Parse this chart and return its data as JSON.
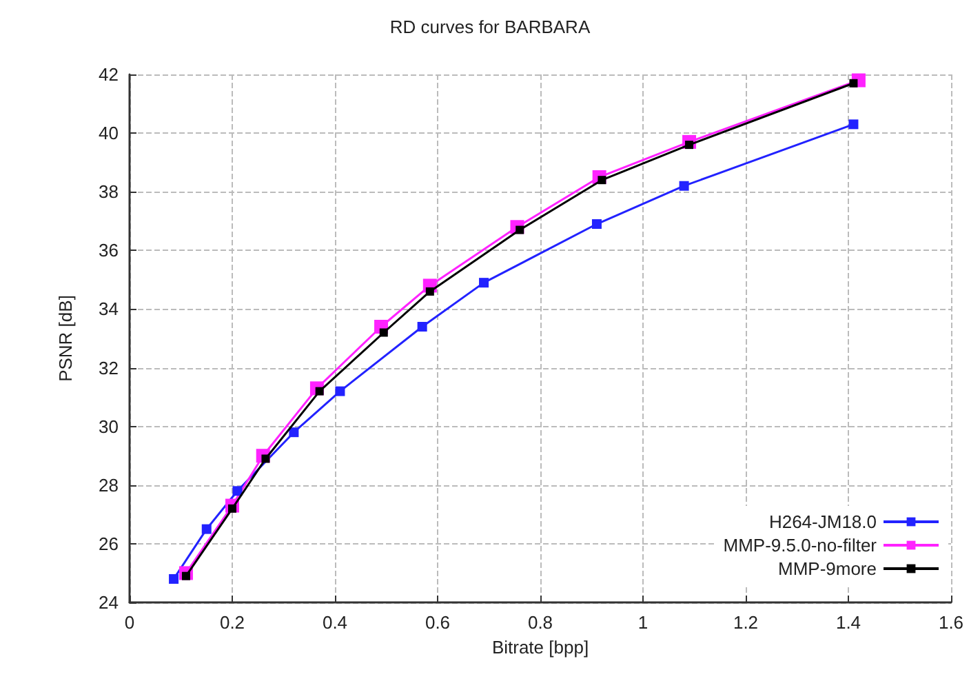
{
  "chart_data": {
    "type": "line",
    "title": "RD curves for BARBARA",
    "xlabel": "Bitrate [bpp]",
    "ylabel": "PSNR [dB]",
    "xlim": [
      0,
      1.6
    ],
    "xticks": [
      0,
      0.2,
      0.4,
      0.6,
      0.8,
      1,
      1.2,
      1.4,
      1.6
    ],
    "ylim": [
      24,
      42
    ],
    "yticks": [
      24,
      26,
      28,
      30,
      32,
      34,
      36,
      38,
      40,
      42
    ],
    "grid": true,
    "legend": "bottom right",
    "marker": "square",
    "line_style": "solid",
    "series": [
      {
        "name": "H264-JM18.0",
        "color": "#2222ff",
        "x": [
          0.086,
          0.15,
          0.21,
          0.32,
          0.41,
          0.57,
          0.69,
          0.91,
          1.08,
          1.41
        ],
        "values": [
          24.8,
          26.5,
          27.8,
          29.8,
          31.2,
          33.4,
          34.9,
          36.9,
          38.2,
          40.3
        ]
      },
      {
        "name": "MMP-9.5.0-no-filter",
        "color": "#ff22ff",
        "x": [
          0.11,
          0.2,
          0.26,
          0.365,
          0.49,
          0.585,
          0.755,
          0.915,
          1.09,
          1.42
        ],
        "values": [
          25.0,
          27.3,
          29.0,
          31.3,
          33.4,
          34.8,
          36.8,
          38.5,
          39.7,
          41.8
        ]
      },
      {
        "name": "MMP-9more",
        "color": "#000000",
        "x": [
          0.11,
          0.2,
          0.265,
          0.37,
          0.495,
          0.585,
          0.76,
          0.92,
          1.09,
          1.41
        ],
        "values": [
          24.9,
          27.2,
          28.9,
          31.2,
          33.2,
          34.6,
          36.7,
          38.4,
          39.6,
          41.7
        ]
      }
    ]
  }
}
